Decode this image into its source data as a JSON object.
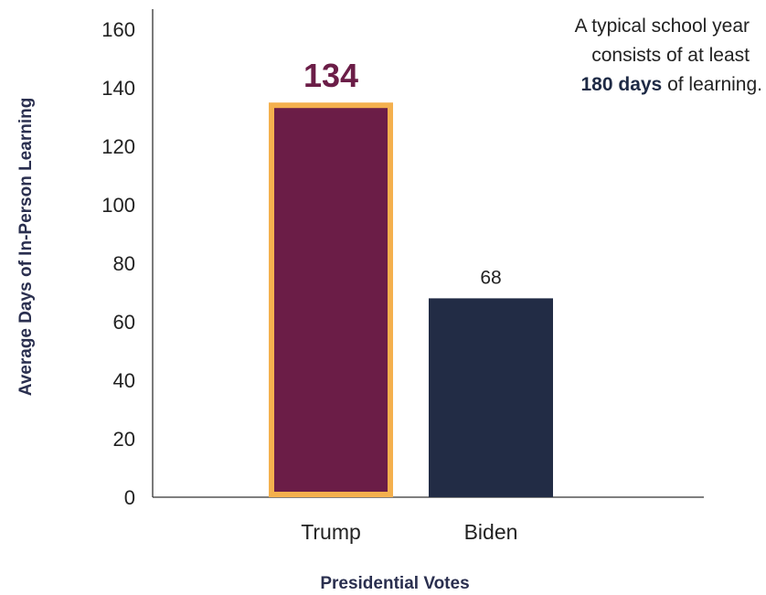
{
  "chart_data": {
    "type": "bar",
    "title": "",
    "xlabel": "Presidential Votes",
    "ylabel": "Average Days of In-Person Learning",
    "ylim": [
      0,
      160
    ],
    "yticks": [
      0,
      20,
      40,
      60,
      80,
      100,
      120,
      140,
      160
    ],
    "categories": [
      "Trump",
      "Biden"
    ],
    "values": [
      134,
      68
    ],
    "value_labels": [
      "134",
      "68"
    ],
    "bar_colors": [
      "#6b1d47",
      "#222c45"
    ],
    "highlight": {
      "category": "Trump",
      "outline_color": "#f4b04e",
      "label_color": "#6b1d47"
    },
    "grid": false,
    "annotation": {
      "line1": "A typical school year",
      "line2": "consists of at least",
      "line3_bold": "180 days",
      "line3_rest": " of learning."
    }
  }
}
